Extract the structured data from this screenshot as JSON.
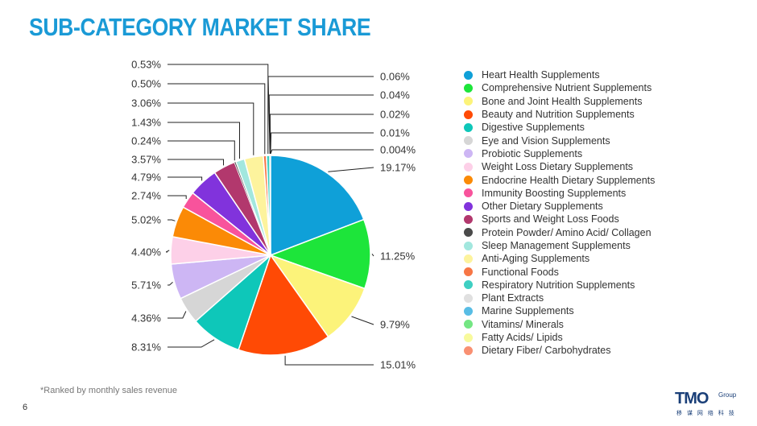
{
  "page": {
    "title": "SUB-CATEGORY MARKET SHARE",
    "footnote": "*Ranked by monthly sales revenue",
    "page_number": "6",
    "logo": {
      "main": "TMO",
      "group": "Group",
      "sub": "移 谋 网 络 科 技"
    }
  },
  "chart_data": {
    "type": "pie",
    "title": "",
    "labels": [
      "Heart Health Supplements",
      "Comprehensive Nutrient Supplements",
      "Bone and Joint Health Supplements",
      "Beauty and Nutrition Supplements",
      "Digestive Supplements",
      "Eye and Vision Supplements",
      "Probiotic Supplements",
      "Weight Loss Dietary Supplements",
      "Endocrine Health Dietary Supplements",
      "Immunity Boosting Supplements",
      "Other Dietary Supplements",
      "Sports and Weight Loss Foods",
      "Protein Powder/ Amino Acid/ Collagen",
      "Sleep Management Supplements",
      "Anti-Aging Supplements",
      "Functional Foods",
      "Respiratory Nutrition Supplements",
      "Plant Extracts",
      "Marine Supplements",
      "Vitamins/ Minerals",
      "Fatty Acids/ Lipids",
      "Dietary Fiber/ Carbohydrates"
    ],
    "values": [
      19.17,
      11.25,
      9.79,
      15.01,
      8.31,
      4.36,
      5.71,
      4.4,
      5.02,
      2.74,
      4.79,
      3.57,
      0.24,
      1.43,
      3.06,
      0.5,
      0.53,
      0.06,
      0.04,
      0.02,
      0.01,
      0.004
    ],
    "value_labels": [
      "19.17%",
      "11.25%",
      "9.79%",
      "15.01%",
      "8.31%",
      "4.36%",
      "5.71%",
      "4.40%",
      "5.02%",
      "2.74%",
      "4.79%",
      "3.57%",
      "0.24%",
      "1.43%",
      "3.06%",
      "0.50%",
      "0.53%",
      "0.06%",
      "0.04%",
      "0.02%",
      "0.01%",
      "0.004%"
    ],
    "colors": [
      "#0fa0d8",
      "#1de53a",
      "#fcf37a",
      "#ff4a05",
      "#0ec7b9",
      "#d6d6d6",
      "#cdb6f4",
      "#fdd0e8",
      "#fb8a06",
      "#f8539c",
      "#8133dc",
      "#b2386d",
      "#4a4a4a",
      "#a2e7de",
      "#fdf39d",
      "#f77645",
      "#3ecfc2",
      "#e0e0e0",
      "#58bde5",
      "#74e683",
      "#f8fa9c",
      "#f99072"
    ],
    "legend_position": "right"
  }
}
